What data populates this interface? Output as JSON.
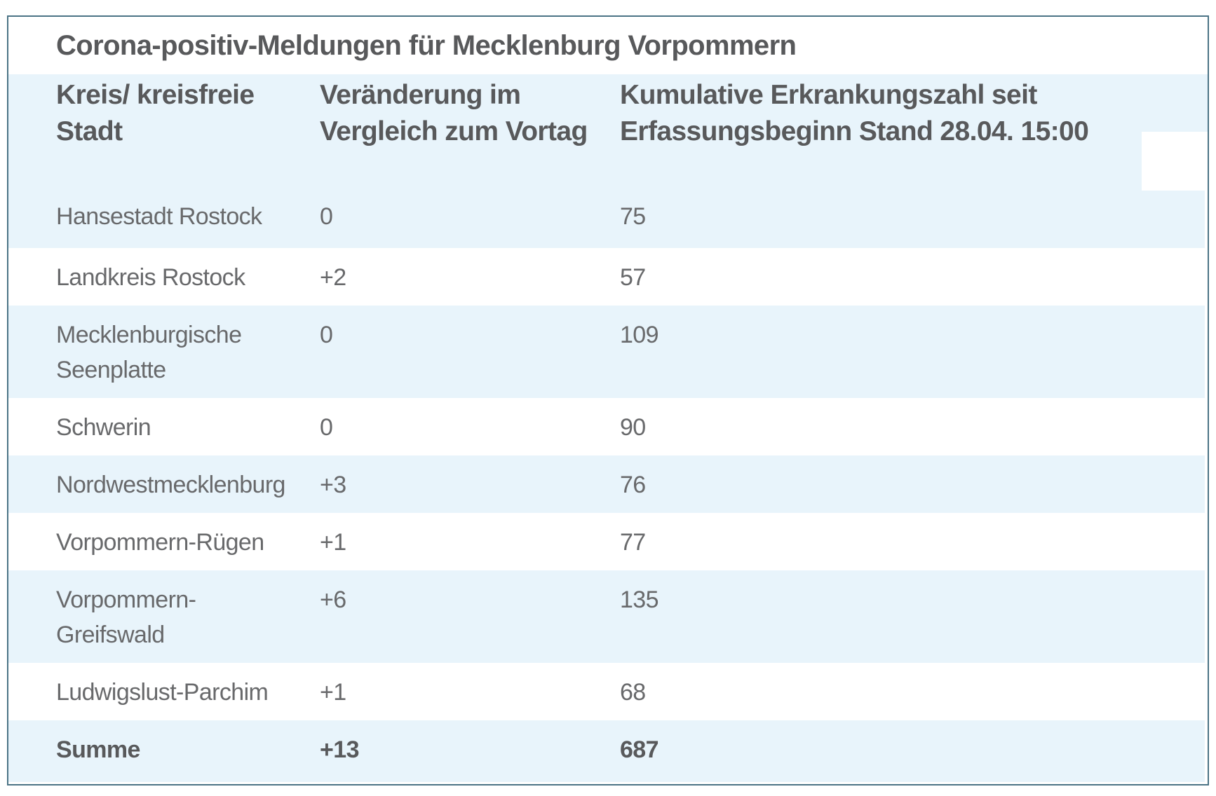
{
  "theme": {
    "stripe_blue": "#e8f4fb",
    "border_blue": "#4b7385",
    "text_regular": "#68696b",
    "text_bold": "#58595b",
    "row_white": "#ffffff"
  },
  "chart_data": {
    "type": "table",
    "title": "Corona-positiv-Meldungen für Mecklenburg Vorpommern",
    "columns": [
      "Kreis/ kreisfreie Stadt",
      "Veränderung im\nVergleich zum Vortag",
      "Kumulative Erkrankungszahl seit\nErfassungsbeginn Stand 28.04. 15:00"
    ],
    "rows": [
      [
        "Hansestadt Rostock",
        "0",
        "75"
      ],
      [
        "Landkreis Rostock",
        "+2",
        "57"
      ],
      [
        "Mecklenburgische\nSeenplatte",
        "0",
        "109"
      ],
      [
        "Schwerin",
        "0",
        "90"
      ],
      [
        "Nordwestmecklenburg",
        "+3",
        "76"
      ],
      [
        "Vorpommern-Rügen",
        "+1",
        "77"
      ],
      [
        "Vorpommern-\nGreifswald",
        "+6",
        "135"
      ],
      [
        "Ludwigslust-Parchim",
        "+1",
        "68"
      ],
      [
        "Summe",
        "+13",
        "687"
      ]
    ],
    "total_row_label": "Summe",
    "total_change": "+13",
    "total_cumulative": "687",
    "stand": "28.04. 15:00",
    "layout_hints": {
      "striping": "header and odd data rows shaded light blue",
      "grid_lines": "none",
      "outer_border": "solid steel blue"
    }
  }
}
